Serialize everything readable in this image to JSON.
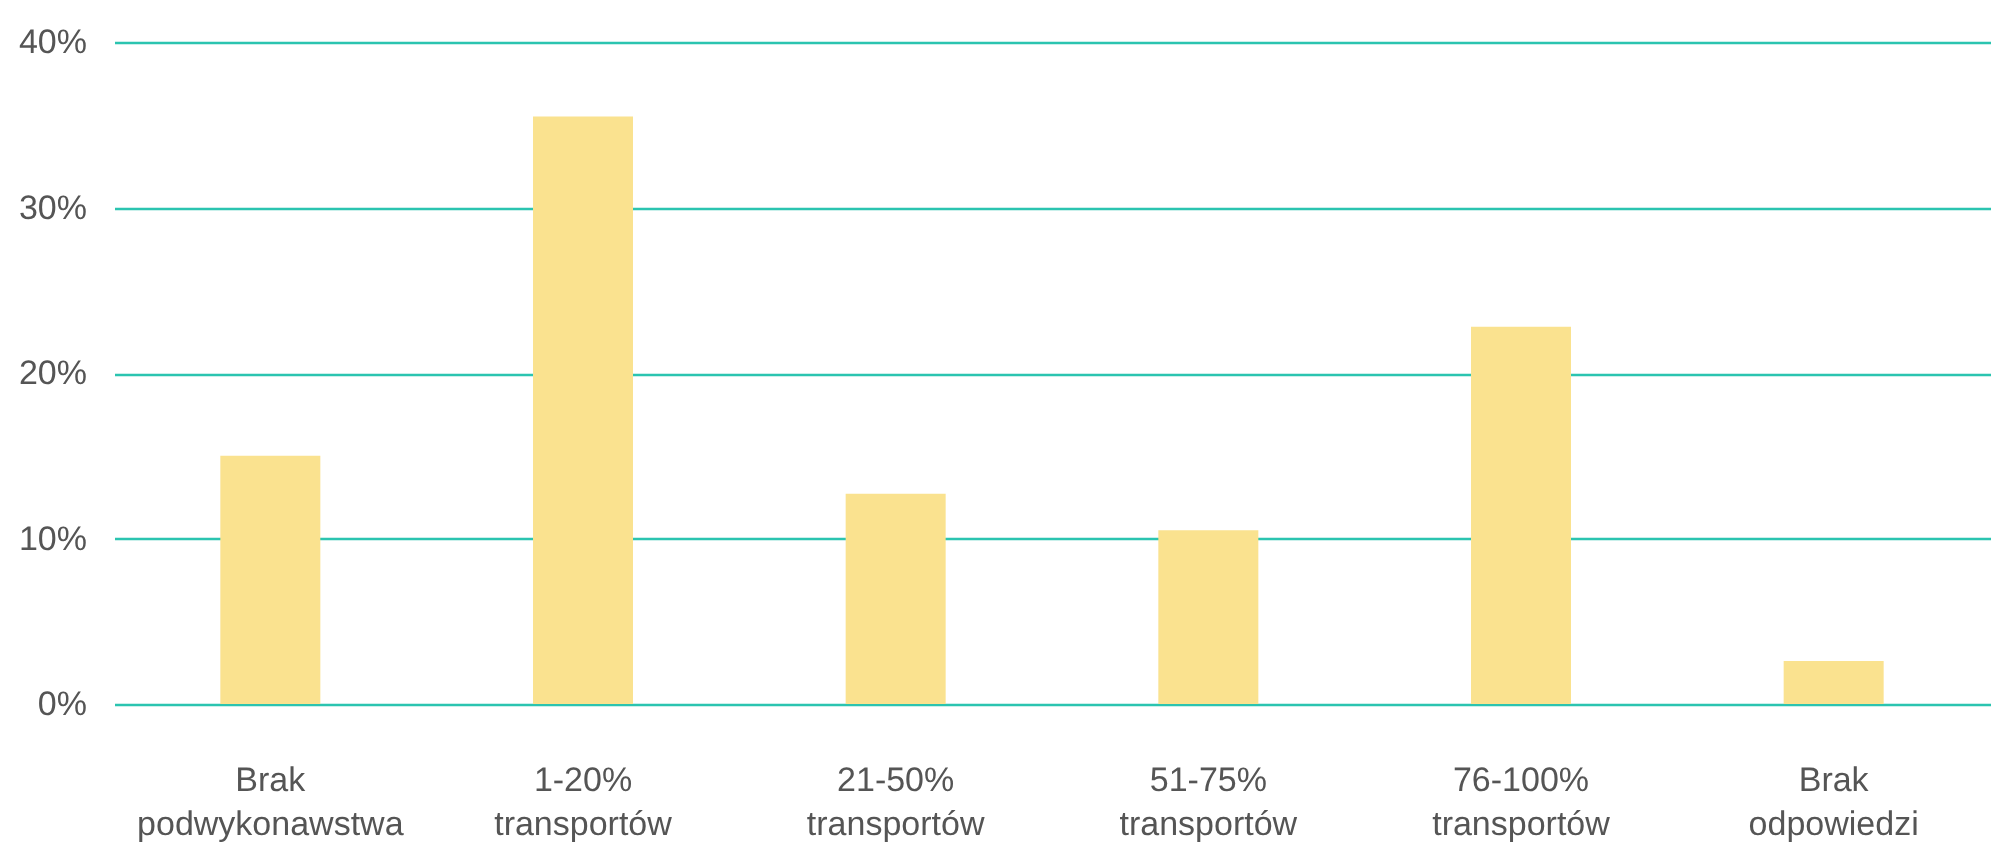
{
  "chart_data": {
    "type": "bar",
    "categories": [
      "Brak podwykonawstwa",
      "1-20% transportów",
      "21-50% transportów",
      "51-75% transportów",
      "76-100% transportów",
      "Brak odpowiedzi"
    ],
    "values": [
      15,
      35.5,
      12.7,
      10.5,
      22.8,
      2.6
    ],
    "color": "#fae28f",
    "ylim": [
      0,
      40
    ],
    "yticks": [
      {
        "value": 0,
        "label": "0%"
      },
      {
        "value": 10,
        "label": "10%"
      },
      {
        "value": 20,
        "label": "20%"
      },
      {
        "value": 30,
        "label": "30%"
      },
      {
        "value": 40,
        "label": "40%"
      }
    ],
    "grid": "y"
  }
}
